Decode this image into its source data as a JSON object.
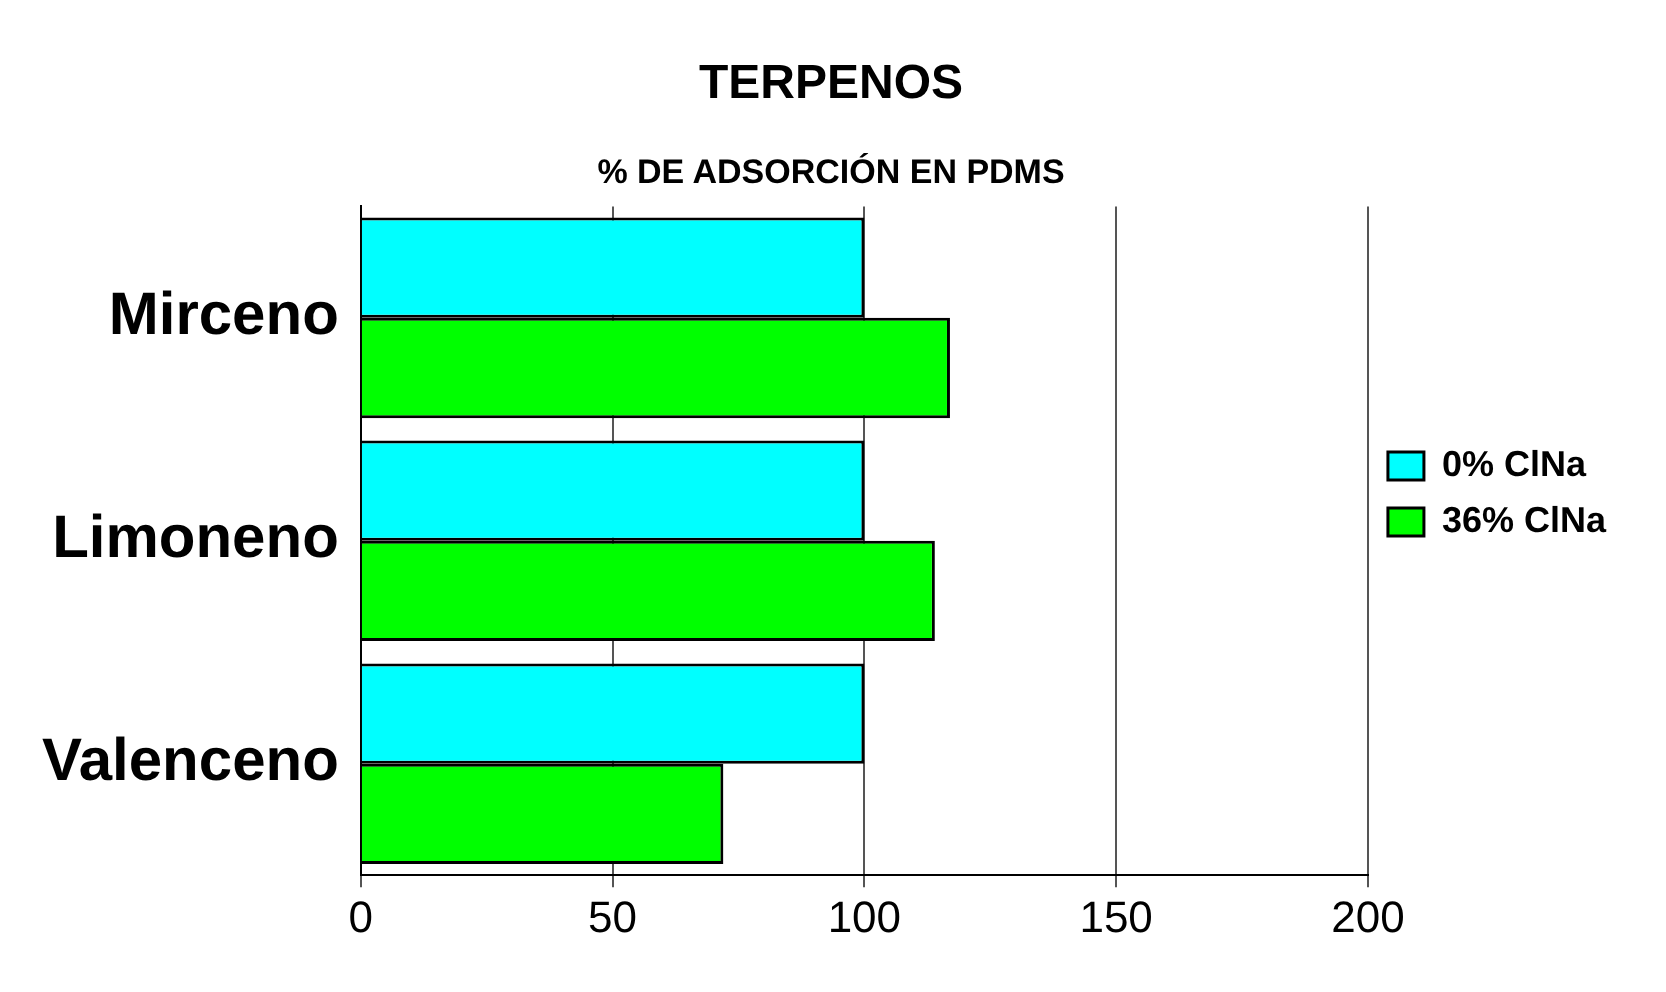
{
  "chart_data": {
    "type": "bar",
    "orientation": "horizontal",
    "title": "TERPENOS",
    "subtitle": "% DE ADSORCIÓN EN PDMS",
    "categories": [
      "Mirceno",
      "Limoneno",
      "Valenceno"
    ],
    "series": [
      {
        "name": "0% ClNa",
        "color": "#00ffff",
        "values": [
          100,
          100,
          100
        ]
      },
      {
        "name": "36% ClNa",
        "color": "#00ff00",
        "values": [
          117,
          114,
          72
        ]
      }
    ],
    "xlim": [
      0,
      200
    ],
    "xticks": [
      0,
      50,
      100,
      150,
      200
    ],
    "grid": "x",
    "legend": "right"
  }
}
